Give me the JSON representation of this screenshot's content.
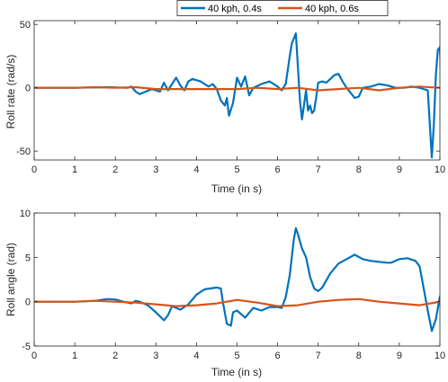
{
  "legend": {
    "placement": "top-center",
    "entries": [
      {
        "label": "40 kph, 0.4s",
        "color": "#0072BD"
      },
      {
        "label": "40 kph, 0.6s",
        "color": "#D95319"
      }
    ]
  },
  "chart_data": [
    {
      "type": "line",
      "xlabel": "Time (in s)",
      "ylabel": "Roll rate (rad/s)",
      "xlim": [
        0,
        10
      ],
      "ylim": [
        -57,
        53
      ],
      "xticks": [
        0,
        1,
        2,
        3,
        4,
        5,
        6,
        7,
        8,
        9,
        10
      ],
      "yticks": [
        -50,
        0,
        50
      ],
      "grid": false,
      "series": [
        {
          "name": "40 kph, 0.4s",
          "color": "#0072BD",
          "points": [
            [
              0,
              0
            ],
            [
              1,
              0
            ],
            [
              1.8,
              0.5
            ],
            [
              2.3,
              0
            ],
            [
              2.4,
              1
            ],
            [
              2.5,
              -3
            ],
            [
              2.6,
              -5
            ],
            [
              2.9,
              -1
            ],
            [
              3.1,
              -3
            ],
            [
              3.2,
              4
            ],
            [
              3.3,
              -2
            ],
            [
              3.5,
              8
            ],
            [
              3.6,
              2
            ],
            [
              3.7,
              -2
            ],
            [
              3.8,
              5
            ],
            [
              3.9,
              7
            ],
            [
              4.1,
              5
            ],
            [
              4.3,
              1
            ],
            [
              4.4,
              3
            ],
            [
              4.5,
              -1
            ],
            [
              4.6,
              -10
            ],
            [
              4.7,
              -14
            ],
            [
              4.75,
              -8
            ],
            [
              4.8,
              -22
            ],
            [
              4.9,
              -12
            ],
            [
              5.0,
              8
            ],
            [
              5.1,
              1
            ],
            [
              5.2,
              9
            ],
            [
              5.3,
              -6
            ],
            [
              5.4,
              0
            ],
            [
              5.6,
              3
            ],
            [
              5.8,
              5
            ],
            [
              6.0,
              1
            ],
            [
              6.1,
              -2
            ],
            [
              6.2,
              3
            ],
            [
              6.3,
              25
            ],
            [
              6.35,
              35
            ],
            [
              6.45,
              43
            ],
            [
              6.55,
              -10
            ],
            [
              6.6,
              -25
            ],
            [
              6.7,
              -2
            ],
            [
              6.75,
              -18
            ],
            [
              6.8,
              -14
            ],
            [
              6.85,
              -20
            ],
            [
              6.9,
              -18
            ],
            [
              6.95,
              -8
            ],
            [
              7.0,
              4
            ],
            [
              7.1,
              5
            ],
            [
              7.2,
              4
            ],
            [
              7.3,
              7
            ],
            [
              7.4,
              10
            ],
            [
              7.5,
              11
            ],
            [
              7.6,
              5
            ],
            [
              7.7,
              0
            ],
            [
              7.8,
              -4
            ],
            [
              7.9,
              -8
            ],
            [
              8.0,
              -7
            ],
            [
              8.1,
              0
            ],
            [
              8.3,
              1
            ],
            [
              8.5,
              3
            ],
            [
              8.7,
              2
            ],
            [
              8.9,
              0
            ],
            [
              9.1,
              0
            ],
            [
              9.3,
              1
            ],
            [
              9.5,
              0
            ],
            [
              9.7,
              -2
            ],
            [
              9.8,
              -55
            ],
            [
              9.85,
              -30
            ],
            [
              9.9,
              10
            ],
            [
              9.95,
              30
            ],
            [
              10.0,
              32
            ],
            [
              10.05,
              -5
            ]
          ]
        },
        {
          "name": "40 kph, 0.6s",
          "color": "#D95319",
          "points": [
            [
              0,
              0
            ],
            [
              1,
              0
            ],
            [
              1.5,
              0.5
            ],
            [
              2,
              0
            ],
            [
              2.5,
              0.5
            ],
            [
              3,
              -1
            ],
            [
              3.5,
              -1
            ],
            [
              4,
              -1
            ],
            [
              4.5,
              -1
            ],
            [
              5,
              -1
            ],
            [
              5.5,
              0
            ],
            [
              6,
              -1
            ],
            [
              6.5,
              0
            ],
            [
              7,
              -2
            ],
            [
              7.5,
              -1
            ],
            [
              8,
              0
            ],
            [
              8.5,
              -2
            ],
            [
              9,
              0
            ],
            [
              9.5,
              1
            ],
            [
              10,
              0
            ]
          ]
        }
      ]
    },
    {
      "type": "line",
      "xlabel": "Time (in s)",
      "ylabel": "Roll angle (rad)",
      "xlim": [
        0,
        10
      ],
      "ylim": [
        -5,
        10
      ],
      "xticks": [
        0,
        1,
        2,
        3,
        4,
        5,
        6,
        7,
        8,
        9,
        10
      ],
      "yticks": [
        -5,
        0,
        5,
        10
      ],
      "grid": false,
      "series": [
        {
          "name": "40 kph, 0.4s",
          "color": "#0072BD",
          "points": [
            [
              0,
              0
            ],
            [
              1,
              0
            ],
            [
              1.5,
              0.1
            ],
            [
              1.8,
              0.3
            ],
            [
              2.0,
              0.25
            ],
            [
              2.2,
              0
            ],
            [
              2.4,
              -0.2
            ],
            [
              2.5,
              0.1
            ],
            [
              2.6,
              0
            ],
            [
              2.8,
              -0.4
            ],
            [
              3.0,
              -1.2
            ],
            [
              3.2,
              -2.1
            ],
            [
              3.3,
              -1.5
            ],
            [
              3.4,
              -0.5
            ],
            [
              3.6,
              -0.9
            ],
            [
              3.8,
              -0.3
            ],
            [
              4.0,
              0.8
            ],
            [
              4.2,
              1.4
            ],
            [
              4.5,
              1.6
            ],
            [
              4.6,
              1.5
            ],
            [
              4.65,
              0
            ],
            [
              4.75,
              -2.5
            ],
            [
              4.85,
              -2.7
            ],
            [
              4.9,
              -1.2
            ],
            [
              5.0,
              -1
            ],
            [
              5.2,
              -1.8
            ],
            [
              5.4,
              -0.7
            ],
            [
              5.6,
              -1
            ],
            [
              5.8,
              -0.6
            ],
            [
              6.0,
              -0.6
            ],
            [
              6.1,
              -0.7
            ],
            [
              6.2,
              0.5
            ],
            [
              6.3,
              3
            ],
            [
              6.4,
              7
            ],
            [
              6.45,
              8.3
            ],
            [
              6.5,
              7.6
            ],
            [
              6.6,
              6
            ],
            [
              6.7,
              5
            ],
            [
              6.8,
              2.8
            ],
            [
              6.9,
              1.5
            ],
            [
              7.0,
              1.2
            ],
            [
              7.1,
              1.6
            ],
            [
              7.3,
              3.2
            ],
            [
              7.5,
              4.3
            ],
            [
              7.7,
              4.8
            ],
            [
              7.9,
              5.3
            ],
            [
              8.1,
              4.8
            ],
            [
              8.3,
              4.6
            ],
            [
              8.5,
              4.5
            ],
            [
              8.7,
              4.4
            ],
            [
              8.8,
              4.4
            ],
            [
              9.0,
              4.8
            ],
            [
              9.2,
              4.9
            ],
            [
              9.4,
              4.6
            ],
            [
              9.5,
              4.0
            ],
            [
              9.6,
              1.5
            ],
            [
              9.7,
              -1
            ],
            [
              9.8,
              -3.3
            ],
            [
              9.9,
              -2
            ],
            [
              10.0,
              0.6
            ]
          ]
        },
        {
          "name": "40 kph, 0.6s",
          "color": "#D95319",
          "points": [
            [
              0,
              0
            ],
            [
              1,
              0
            ],
            [
              1.5,
              0.1
            ],
            [
              2,
              0
            ],
            [
              2.5,
              -0.1
            ],
            [
              3,
              -0.3
            ],
            [
              3.5,
              -0.5
            ],
            [
              4,
              -0.4
            ],
            [
              4.5,
              -0.2
            ],
            [
              5,
              0.2
            ],
            [
              5.5,
              -0.1
            ],
            [
              6,
              -0.5
            ],
            [
              6.5,
              -0.4
            ],
            [
              7,
              0
            ],
            [
              7.5,
              0.2
            ],
            [
              8,
              0.3
            ],
            [
              8.5,
              0
            ],
            [
              9,
              -0.2
            ],
            [
              9.5,
              -0.4
            ],
            [
              10,
              0
            ]
          ]
        }
      ]
    }
  ]
}
